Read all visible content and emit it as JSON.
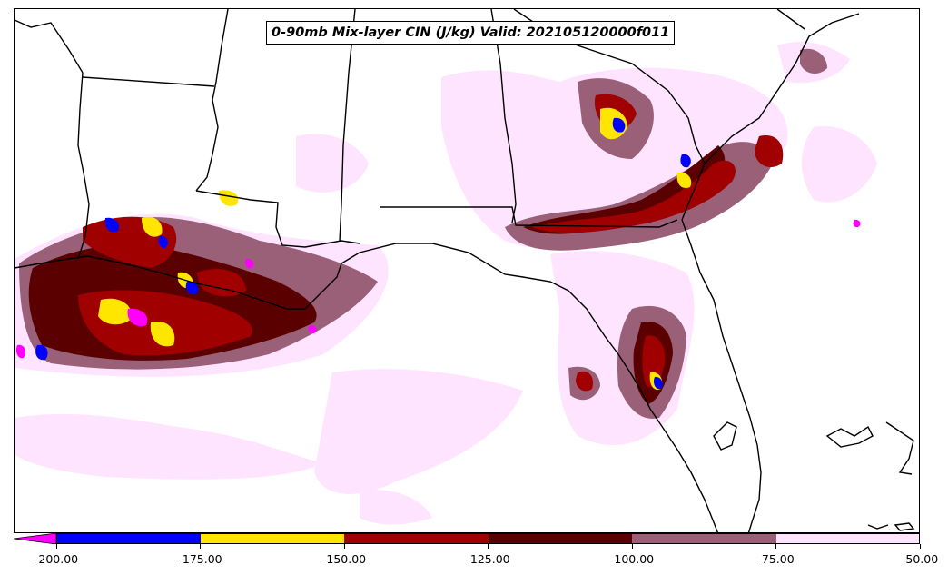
{
  "title": "0-90mb Mix-layer CIN (J/kg) Valid: 202105120000f011",
  "colorbar": {
    "extend_min_color": "#ff00ff",
    "segments": [
      {
        "from": -200,
        "to": -175,
        "color": "#0000ff"
      },
      {
        "from": -175,
        "to": -150,
        "color": "#ffe600"
      },
      {
        "from": -150,
        "to": -125,
        "color": "#a00000"
      },
      {
        "from": -125,
        "to": -100,
        "color": "#5a0000"
      },
      {
        "from": -100,
        "to": -75,
        "color": "#9a6078"
      },
      {
        "from": -75,
        "to": -50,
        "color": "#ffe4ff"
      }
    ],
    "tick_labels": [
      "-200.00",
      "-175.00",
      "-150.00",
      "-125.00",
      "-100.00",
      "-75.00",
      "-50.00"
    ]
  },
  "map": {
    "background": "#ffffff",
    "coastline_color": "#000000",
    "region": "US Gulf Coast and Gulf of Mexico"
  }
}
